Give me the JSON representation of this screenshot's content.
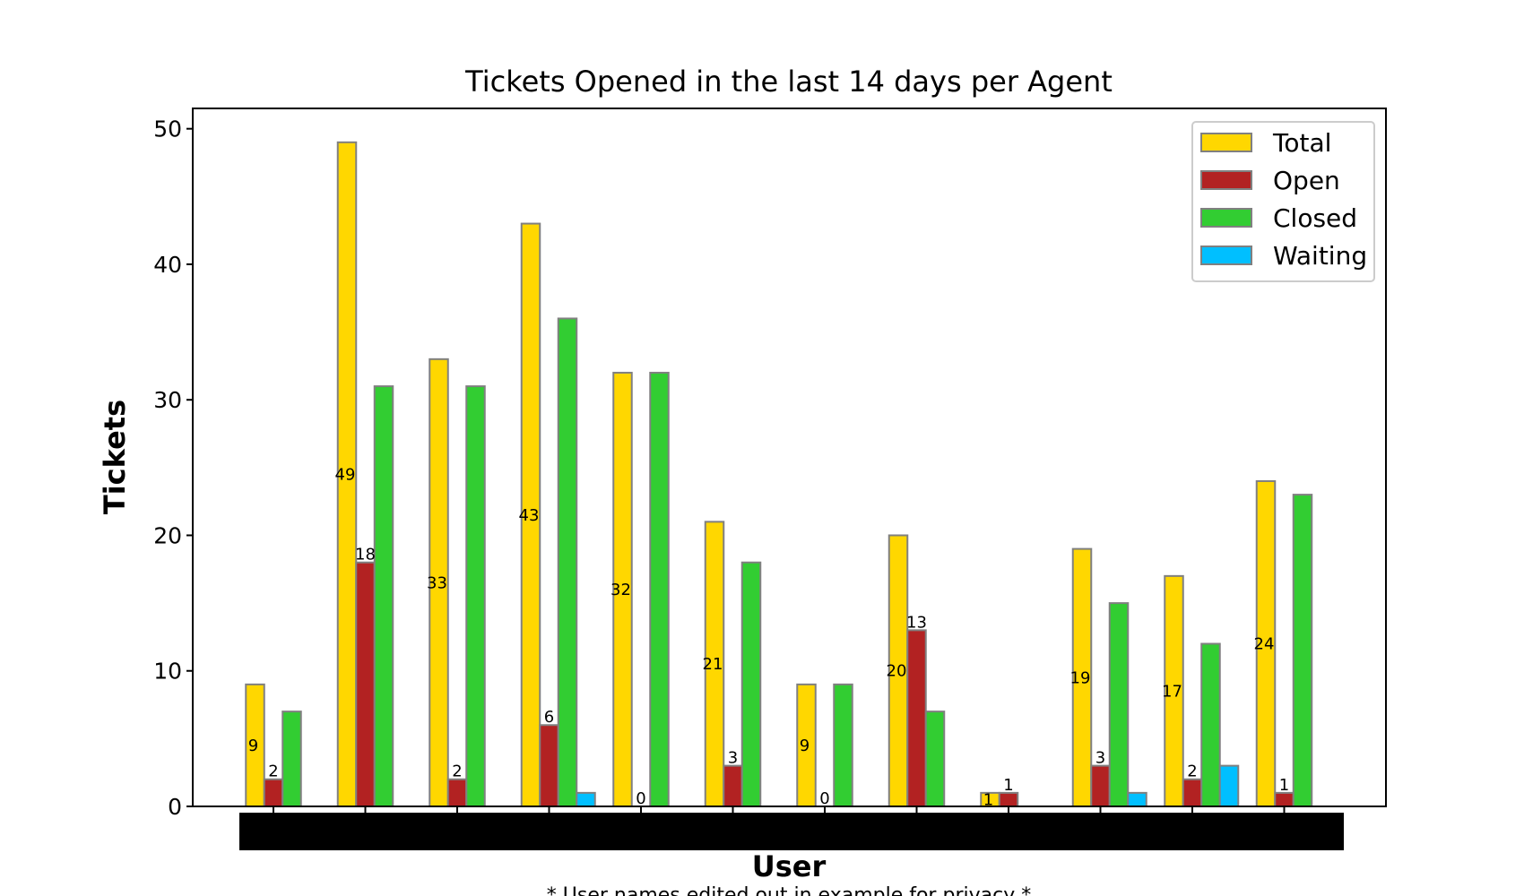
{
  "chart_data": {
    "type": "bar",
    "title": "Tickets Opened in the last 14 days per Agent",
    "xlabel": "User",
    "ylabel": "Tickets",
    "footnote": "* User names edited out in example for privacy *",
    "ylim": [
      0,
      51.5
    ],
    "yticks": [
      0,
      10,
      20,
      30,
      40,
      50
    ],
    "category_count": 12,
    "category_labels_redacted": true,
    "legend_position": "top-right",
    "grid": false,
    "series": [
      {
        "name": "Total",
        "color": "#ffd700",
        "values": [
          9,
          49,
          33,
          43,
          32,
          21,
          9,
          20,
          1,
          19,
          17,
          24
        ]
      },
      {
        "name": "Open",
        "color": "#b22222",
        "values": [
          2,
          18,
          2,
          6,
          0,
          3,
          0,
          13,
          1,
          3,
          2,
          1
        ]
      },
      {
        "name": "Closed",
        "color": "#32cd32",
        "values": [
          7,
          31,
          31,
          36,
          32,
          18,
          9,
          7,
          0,
          15,
          12,
          23
        ]
      },
      {
        "name": "Waiting",
        "color": "#00bfff",
        "values": [
          0,
          0,
          0,
          1,
          0,
          0,
          0,
          0,
          0,
          1,
          3,
          0
        ]
      }
    ],
    "labeled_series": [
      "Total",
      "Open"
    ]
  },
  "colors": {
    "bar_edge": "#808080",
    "redaction": "#000000"
  }
}
